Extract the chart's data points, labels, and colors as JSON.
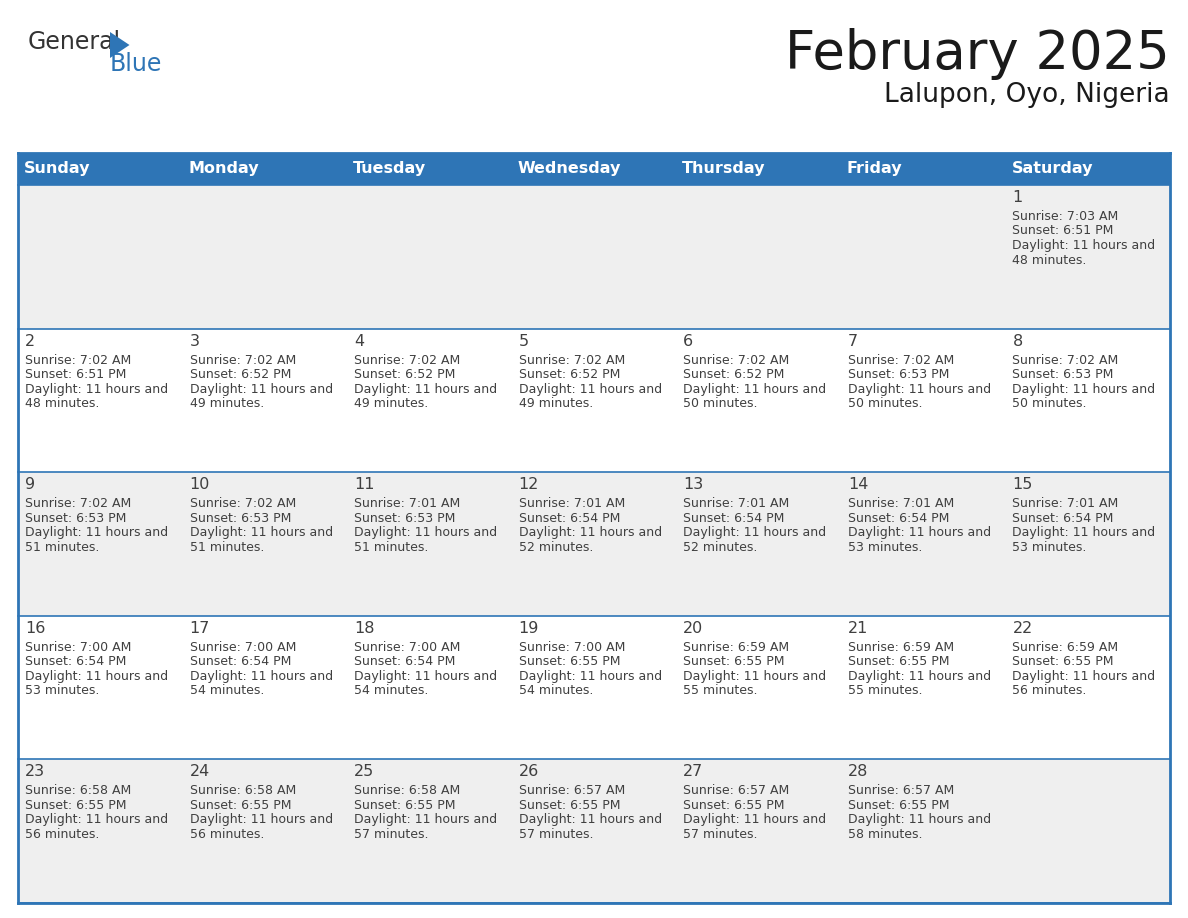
{
  "title": "February 2025",
  "subtitle": "Lalupon, Oyo, Nigeria",
  "header_bg": "#2E75B6",
  "header_text_color": "#FFFFFF",
  "day_names": [
    "Sunday",
    "Monday",
    "Tuesday",
    "Wednesday",
    "Thursday",
    "Friday",
    "Saturday"
  ],
  "row0_bg": "#EFEFEF",
  "row1_bg": "#FFFFFF",
  "row2_bg": "#EFEFEF",
  "row3_bg": "#FFFFFF",
  "row4_bg": "#EFEFEF",
  "border_color": "#2E75B6",
  "cell_text_color": "#404040",
  "day_num_color": "#404040",
  "general_color": "#333333",
  "blue_color": "#2E75B6",
  "days": [
    {
      "date": 1,
      "col": 6,
      "row": 0,
      "sunrise": "7:03 AM",
      "sunset": "6:51 PM",
      "daylight": "11 hours and 48 minutes."
    },
    {
      "date": 2,
      "col": 0,
      "row": 1,
      "sunrise": "7:02 AM",
      "sunset": "6:51 PM",
      "daylight": "11 hours and 48 minutes."
    },
    {
      "date": 3,
      "col": 1,
      "row": 1,
      "sunrise": "7:02 AM",
      "sunset": "6:52 PM",
      "daylight": "11 hours and 49 minutes."
    },
    {
      "date": 4,
      "col": 2,
      "row": 1,
      "sunrise": "7:02 AM",
      "sunset": "6:52 PM",
      "daylight": "11 hours and 49 minutes."
    },
    {
      "date": 5,
      "col": 3,
      "row": 1,
      "sunrise": "7:02 AM",
      "sunset": "6:52 PM",
      "daylight": "11 hours and 49 minutes."
    },
    {
      "date": 6,
      "col": 4,
      "row": 1,
      "sunrise": "7:02 AM",
      "sunset": "6:52 PM",
      "daylight": "11 hours and 50 minutes."
    },
    {
      "date": 7,
      "col": 5,
      "row": 1,
      "sunrise": "7:02 AM",
      "sunset": "6:53 PM",
      "daylight": "11 hours and 50 minutes."
    },
    {
      "date": 8,
      "col": 6,
      "row": 1,
      "sunrise": "7:02 AM",
      "sunset": "6:53 PM",
      "daylight": "11 hours and 50 minutes."
    },
    {
      "date": 9,
      "col": 0,
      "row": 2,
      "sunrise": "7:02 AM",
      "sunset": "6:53 PM",
      "daylight": "11 hours and 51 minutes."
    },
    {
      "date": 10,
      "col": 1,
      "row": 2,
      "sunrise": "7:02 AM",
      "sunset": "6:53 PM",
      "daylight": "11 hours and 51 minutes."
    },
    {
      "date": 11,
      "col": 2,
      "row": 2,
      "sunrise": "7:01 AM",
      "sunset": "6:53 PM",
      "daylight": "11 hours and 51 minutes."
    },
    {
      "date": 12,
      "col": 3,
      "row": 2,
      "sunrise": "7:01 AM",
      "sunset": "6:54 PM",
      "daylight": "11 hours and 52 minutes."
    },
    {
      "date": 13,
      "col": 4,
      "row": 2,
      "sunrise": "7:01 AM",
      "sunset": "6:54 PM",
      "daylight": "11 hours and 52 minutes."
    },
    {
      "date": 14,
      "col": 5,
      "row": 2,
      "sunrise": "7:01 AM",
      "sunset": "6:54 PM",
      "daylight": "11 hours and 53 minutes."
    },
    {
      "date": 15,
      "col": 6,
      "row": 2,
      "sunrise": "7:01 AM",
      "sunset": "6:54 PM",
      "daylight": "11 hours and 53 minutes."
    },
    {
      "date": 16,
      "col": 0,
      "row": 3,
      "sunrise": "7:00 AM",
      "sunset": "6:54 PM",
      "daylight": "11 hours and 53 minutes."
    },
    {
      "date": 17,
      "col": 1,
      "row": 3,
      "sunrise": "7:00 AM",
      "sunset": "6:54 PM",
      "daylight": "11 hours and 54 minutes."
    },
    {
      "date": 18,
      "col": 2,
      "row": 3,
      "sunrise": "7:00 AM",
      "sunset": "6:54 PM",
      "daylight": "11 hours and 54 minutes."
    },
    {
      "date": 19,
      "col": 3,
      "row": 3,
      "sunrise": "7:00 AM",
      "sunset": "6:55 PM",
      "daylight": "11 hours and 54 minutes."
    },
    {
      "date": 20,
      "col": 4,
      "row": 3,
      "sunrise": "6:59 AM",
      "sunset": "6:55 PM",
      "daylight": "11 hours and 55 minutes."
    },
    {
      "date": 21,
      "col": 5,
      "row": 3,
      "sunrise": "6:59 AM",
      "sunset": "6:55 PM",
      "daylight": "11 hours and 55 minutes."
    },
    {
      "date": 22,
      "col": 6,
      "row": 3,
      "sunrise": "6:59 AM",
      "sunset": "6:55 PM",
      "daylight": "11 hours and 56 minutes."
    },
    {
      "date": 23,
      "col": 0,
      "row": 4,
      "sunrise": "6:58 AM",
      "sunset": "6:55 PM",
      "daylight": "11 hours and 56 minutes."
    },
    {
      "date": 24,
      "col": 1,
      "row": 4,
      "sunrise": "6:58 AM",
      "sunset": "6:55 PM",
      "daylight": "11 hours and 56 minutes."
    },
    {
      "date": 25,
      "col": 2,
      "row": 4,
      "sunrise": "6:58 AM",
      "sunset": "6:55 PM",
      "daylight": "11 hours and 57 minutes."
    },
    {
      "date": 26,
      "col": 3,
      "row": 4,
      "sunrise": "6:57 AM",
      "sunset": "6:55 PM",
      "daylight": "11 hours and 57 minutes."
    },
    {
      "date": 27,
      "col": 4,
      "row": 4,
      "sunrise": "6:57 AM",
      "sunset": "6:55 PM",
      "daylight": "11 hours and 57 minutes."
    },
    {
      "date": 28,
      "col": 5,
      "row": 4,
      "sunrise": "6:57 AM",
      "sunset": "6:55 PM",
      "daylight": "11 hours and 58 minutes."
    }
  ]
}
